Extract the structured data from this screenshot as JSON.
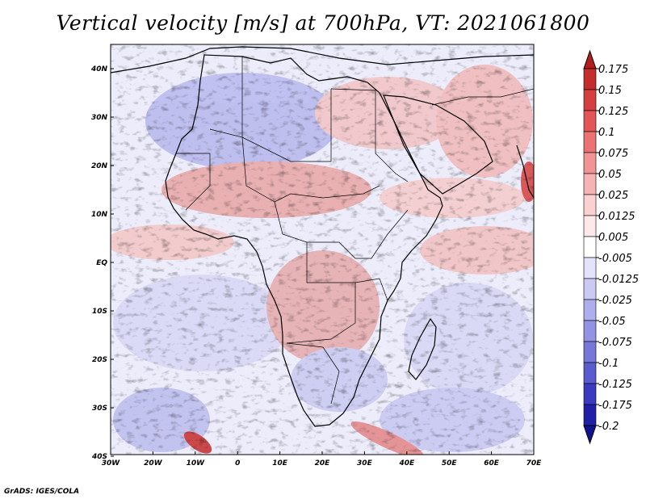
{
  "title": "Vertical velocity [m/s] at 700hPa, VT: 2021061800",
  "credit": "GrADS: IGES/COLA",
  "map": {
    "region": "Africa",
    "projection": "latlon",
    "lon_range": [
      -30,
      75
    ],
    "lat_range": [
      -40,
      45
    ],
    "lon_ticks": [
      "30W",
      "20W",
      "10W",
      "0",
      "10E",
      "20E",
      "30E",
      "40E",
      "50E",
      "60E",
      "70E"
    ],
    "lat_ticks": [
      "40N",
      "30N",
      "20N",
      "10N",
      "EQ",
      "10S",
      "20S",
      "30S",
      "40S"
    ],
    "field": "vertical velocity",
    "level": "700hPa",
    "valid_time": "2021061800"
  },
  "colorbar": {
    "labels": [
      "0.175",
      "0.15",
      "0.125",
      "0.1",
      "0.075",
      "0.05",
      "0.025",
      "0.0125",
      "0.005",
      "-0.005",
      "-0.0125",
      "-0.025",
      "-0.05",
      "-0.075",
      "-0.1",
      "-0.125",
      "-0.175",
      "-0.2"
    ],
    "colors": [
      "#b11e1e",
      "#c52c2c",
      "#d63f3f",
      "#e35656",
      "#ec7373",
      "#f29494",
      "#f6b3b3",
      "#fad0d0",
      "#fde9e9",
      "#ffffff",
      "#e3e3fb",
      "#cacaf4",
      "#aeaeec",
      "#9393e3",
      "#7777da",
      "#5b5bd0",
      "#3b3bc1",
      "#1f1fa7",
      "#12128e"
    ]
  }
}
